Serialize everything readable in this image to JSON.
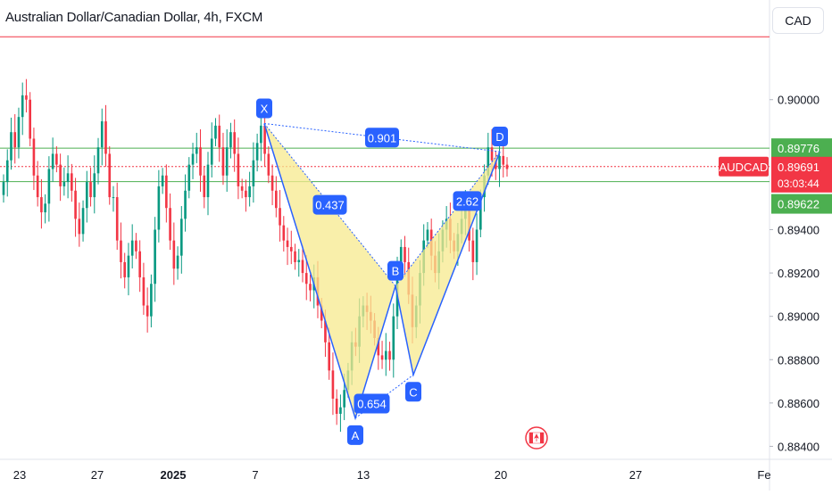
{
  "header": {
    "title": "Australian Dollar/Canadian Dollar, 4h, FXCM",
    "currency": "CAD"
  },
  "colors": {
    "up": "#089981",
    "down": "#f23645",
    "pattern_line": "#2962ff",
    "pattern_fill": "#f7e98e",
    "level_green": "#4caf50",
    "level_red": "#f23645",
    "tag_blue": "#2962ff"
  },
  "chart_data": {
    "type": "candlestick",
    "symbol": "AUDCAD",
    "ylim": [
      0.8834,
      0.9046
    ],
    "y_ticks": [
      "0.90000",
      "0.89400",
      "0.89200",
      "0.89000",
      "0.88800",
      "0.88600",
      "0.88400"
    ],
    "x_ticks": [
      "23",
      "27",
      "2025",
      "7",
      "13",
      "20",
      "27",
      "Fe"
    ],
    "levels": {
      "upper_red": 0.9029,
      "green_high": 0.89776,
      "green_low": 0.89622,
      "current": 0.89691
    },
    "price_tags": {
      "upper_green": "0.89776",
      "symbol_label": "AUDCAD",
      "current_price": "0.89691",
      "countdown": "03:03:44",
      "lower_green": "0.89622"
    },
    "pattern": {
      "points": [
        {
          "label": "X",
          "price": 0.8989
        },
        {
          "label": "A",
          "price": 0.8853
        },
        {
          "label": "B",
          "price": 0.8914
        },
        {
          "label": "C",
          "price": 0.8873
        },
        {
          "label": "D",
          "price": 0.8976
        }
      ],
      "ratios": [
        {
          "text": "0.901",
          "between": "X-D"
        },
        {
          "text": "0.437",
          "between": "X-B"
        },
        {
          "text": "2.62",
          "between": "B-D"
        },
        {
          "text": "0.654",
          "between": "A-C"
        }
      ]
    },
    "event_marker": "canada-flag-icon"
  }
}
